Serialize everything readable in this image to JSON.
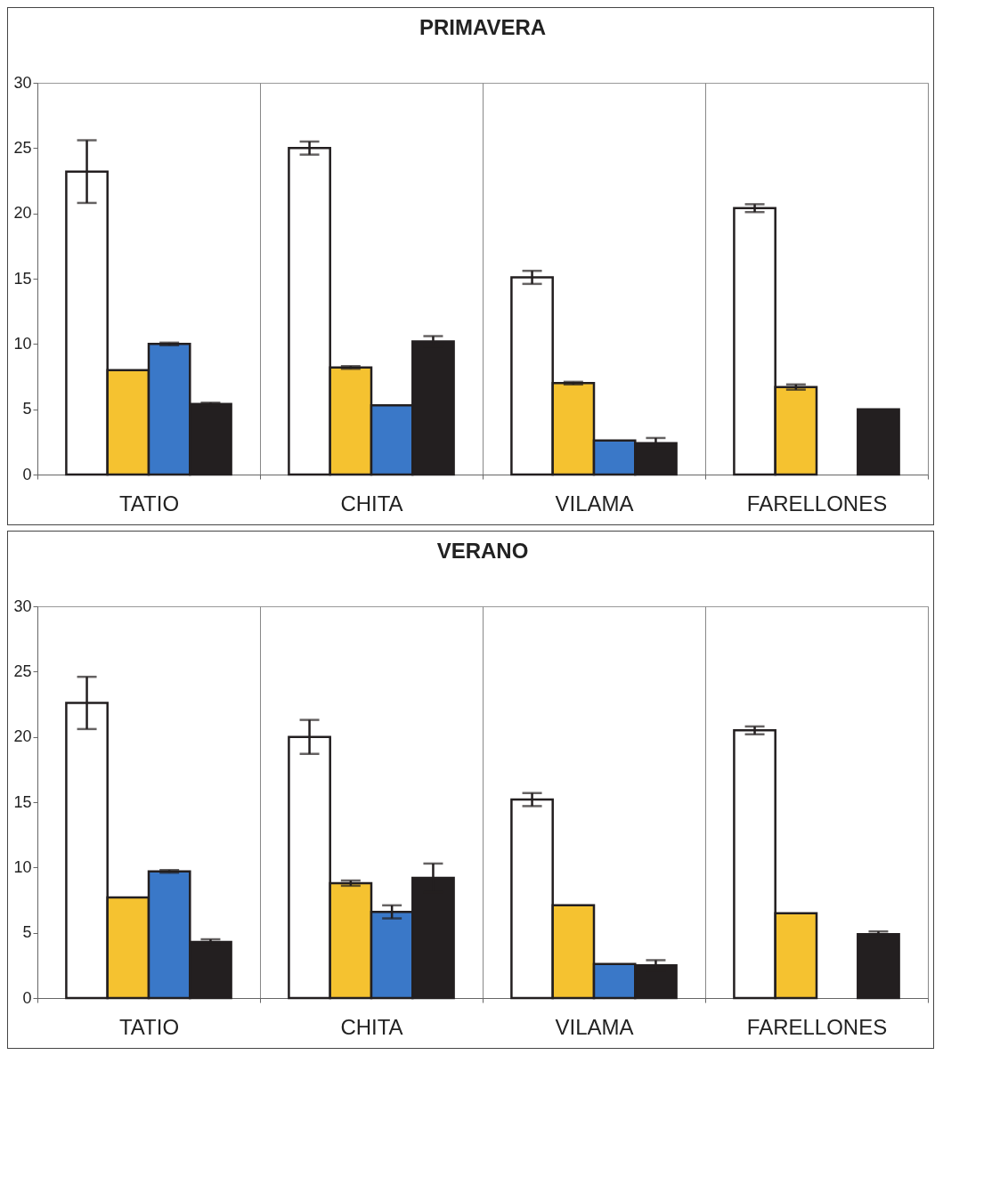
{
  "chart_data": [
    {
      "type": "bar",
      "title": "PRIMAVERA",
      "categories": [
        "TATIO",
        "CHITA",
        "VILAMA",
        "FARELLONES"
      ],
      "ylim": [
        0,
        30
      ],
      "yticks": [
        0,
        5,
        10,
        15,
        20,
        25,
        30
      ],
      "grid": "x",
      "series": [
        {
          "color": "#ffffff",
          "values": [
            23.2,
            25.0,
            15.1,
            20.4
          ],
          "errors": [
            2.4,
            0.5,
            0.5,
            0.3
          ]
        },
        {
          "color": "#f5c230",
          "values": [
            8.0,
            8.2,
            7.0,
            6.7
          ],
          "errors": [
            null,
            0.1,
            0.1,
            0.2
          ]
        },
        {
          "color": "#3a78c8",
          "values": [
            10.0,
            5.3,
            2.6,
            0
          ],
          "errors": [
            0.1,
            null,
            null,
            null
          ]
        },
        {
          "color": "#231f20",
          "values": [
            5.4,
            10.2,
            2.4,
            5.0
          ],
          "errors": [
            0.1,
            0.4,
            0.4,
            null
          ]
        }
      ]
    },
    {
      "type": "bar",
      "title": "VERANO",
      "categories": [
        "TATIO",
        "CHITA",
        "VILAMA",
        "FARELLONES"
      ],
      "ylim": [
        0,
        30
      ],
      "yticks": [
        0,
        5,
        10,
        15,
        20,
        25,
        30
      ],
      "grid": "x",
      "series": [
        {
          "color": "#ffffff",
          "values": [
            22.6,
            20.0,
            15.2,
            20.5
          ],
          "errors": [
            2.0,
            1.3,
            0.5,
            0.3
          ]
        },
        {
          "color": "#f5c230",
          "values": [
            7.7,
            8.8,
            7.1,
            6.5
          ],
          "errors": [
            null,
            0.2,
            null,
            null
          ]
        },
        {
          "color": "#3a78c8",
          "values": [
            9.7,
            6.6,
            2.6,
            0
          ],
          "errors": [
            0.1,
            0.5,
            null,
            null
          ]
        },
        {
          "color": "#231f20",
          "values": [
            4.3,
            9.2,
            2.5,
            4.9
          ],
          "errors": [
            0.2,
            1.1,
            0.4,
            0.2
          ]
        }
      ]
    }
  ]
}
